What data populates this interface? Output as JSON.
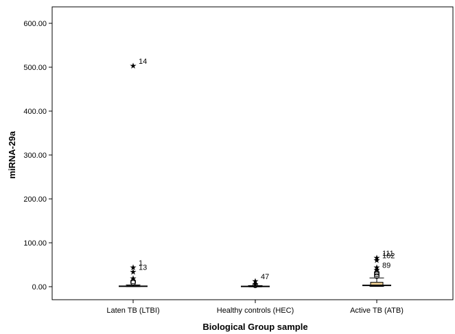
{
  "chart_data": {
    "type": "box",
    "xlabel": "Biological Group sample",
    "ylabel": "miRNA-29a",
    "ylim": [
      0,
      600
    ],
    "yticks": [
      0,
      100,
      200,
      300,
      400,
      500,
      600
    ],
    "ytick_labels": [
      "0.00",
      "100.00",
      "200.00",
      "300.00",
      "400.00",
      "500.00",
      "600.00"
    ],
    "grid": false,
    "box_fill": "#e6c98f",
    "groups": [
      {
        "label": "Laten TB (LTBI)",
        "min": 0.2,
        "q1": 0.5,
        "median": 1.0,
        "q3": 2.0,
        "max": 4.0,
        "outliers": [
          {
            "value": 505,
            "marker": "star",
            "label": "14"
          },
          {
            "value": 45,
            "marker": "star",
            "label": "1"
          },
          {
            "value": 35,
            "marker": "star",
            "label": "13"
          },
          {
            "value": 20,
            "marker": "star",
            "label": ""
          },
          {
            "value": 12,
            "marker": "circle",
            "label": ""
          },
          {
            "value": 9,
            "marker": "circle",
            "label": ""
          }
        ]
      },
      {
        "label": "Healthy controls (HEC)",
        "min": 0.1,
        "q1": 0.3,
        "median": 0.6,
        "q3": 1.2,
        "max": 2.5,
        "outliers": [
          {
            "value": 14,
            "marker": "star",
            "label": "47"
          },
          {
            "value": 7,
            "marker": "star",
            "label": ""
          },
          {
            "value": 3,
            "marker": "circle",
            "label": ""
          }
        ]
      },
      {
        "label": "Active TB (ATB)",
        "min": 0.5,
        "q1": 1.5,
        "median": 3.0,
        "q3": 10.0,
        "max": 20.0,
        "outliers": [
          {
            "value": 67,
            "marker": "star",
            "label": "111"
          },
          {
            "value": 62,
            "marker": "star",
            "label": "102"
          },
          {
            "value": 45,
            "marker": "star",
            "label": ""
          },
          {
            "value": 40,
            "marker": "star",
            "label": "89"
          },
          {
            "value": 32,
            "marker": "circle",
            "label": ""
          },
          {
            "value": 28,
            "marker": "circle",
            "label": ""
          },
          {
            "value": 24,
            "marker": "circle",
            "label": ""
          }
        ]
      }
    ]
  }
}
